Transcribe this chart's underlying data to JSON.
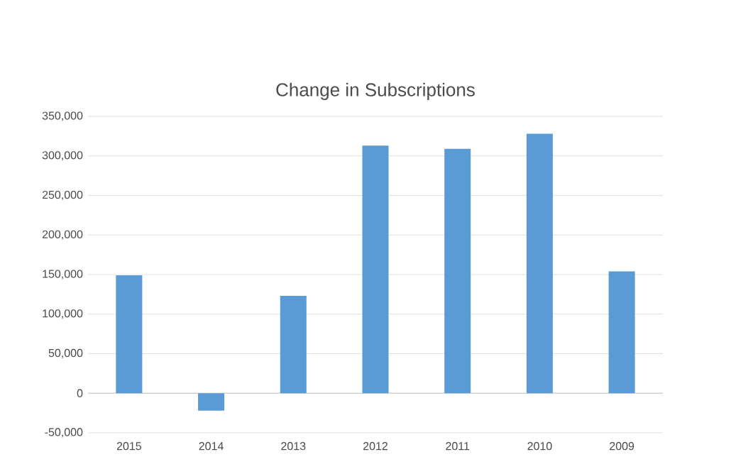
{
  "chart_data": {
    "type": "bar",
    "title": "Change in Subscriptions",
    "categories": [
      "2015",
      "2014",
      "2013",
      "2012",
      "2011",
      "2010",
      "2009"
    ],
    "values": [
      149000,
      -22000,
      123000,
      313000,
      309000,
      328000,
      154000
    ],
    "color": "#5b9bd5",
    "ylim": [
      -50000,
      350000
    ],
    "yticks": [
      {
        "value": -50000,
        "label": "-50,000"
      },
      {
        "value": 0,
        "label": "0"
      },
      {
        "value": 50000,
        "label": "50,000"
      },
      {
        "value": 100000,
        "label": "100,000"
      },
      {
        "value": 150000,
        "label": "150,000"
      },
      {
        "value": 200000,
        "label": "200,000"
      },
      {
        "value": 250000,
        "label": "250,000"
      },
      {
        "value": 300000,
        "label": "300,000"
      },
      {
        "value": 350000,
        "label": "350,000"
      }
    ],
    "grid": "y"
  }
}
